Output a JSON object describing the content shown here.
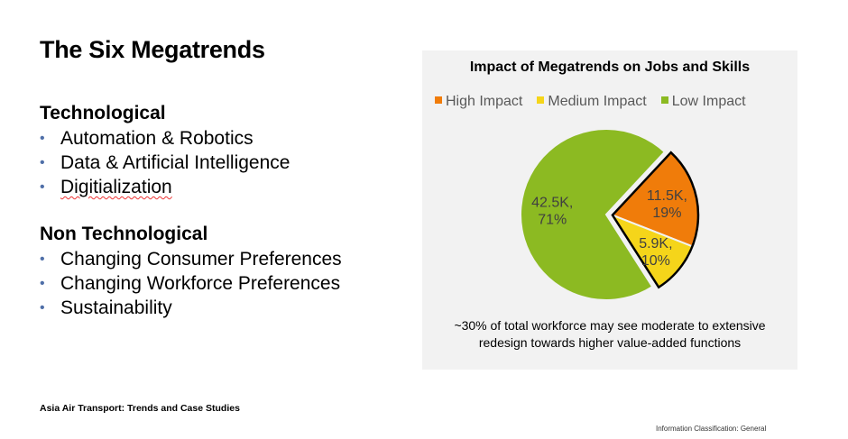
{
  "slide": {
    "title": "The Six Megatrends",
    "sections": [
      {
        "heading": "Technological",
        "items": [
          "Automation & Robotics",
          "Data & Artificial Intelligence",
          "Digitialization"
        ]
      },
      {
        "heading": "Non Technological",
        "items": [
          "Changing Consumer Preferences",
          "Changing Workforce Preferences",
          "Sustainability"
        ]
      }
    ],
    "footer": "Asia Air Transport: Trends and Case Studies",
    "classification": "Information Classification: General"
  },
  "chart_data": {
    "type": "pie",
    "title": "Impact of Megatrends on Jobs and Skills",
    "legend_position": "top",
    "slices": [
      {
        "name": "High Impact",
        "value": 11.5,
        "percent": 19,
        "label": "11.5K,",
        "label2": "19%",
        "color": "#f07c0a",
        "exploded": true
      },
      {
        "name": "Medium Impact",
        "value": 5.9,
        "percent": 10,
        "label": "5.9K,",
        "label2": "10%",
        "color": "#f5d51a",
        "exploded": true
      },
      {
        "name": "Low Impact",
        "value": 42.5,
        "percent": 71,
        "label": "42.5K,",
        "label2": "71%",
        "color": "#8cba22",
        "exploded": false
      }
    ],
    "note_line1": "~30% of total workforce may see moderate to extensive",
    "note_line2": "redesign towards higher value-added functions"
  }
}
